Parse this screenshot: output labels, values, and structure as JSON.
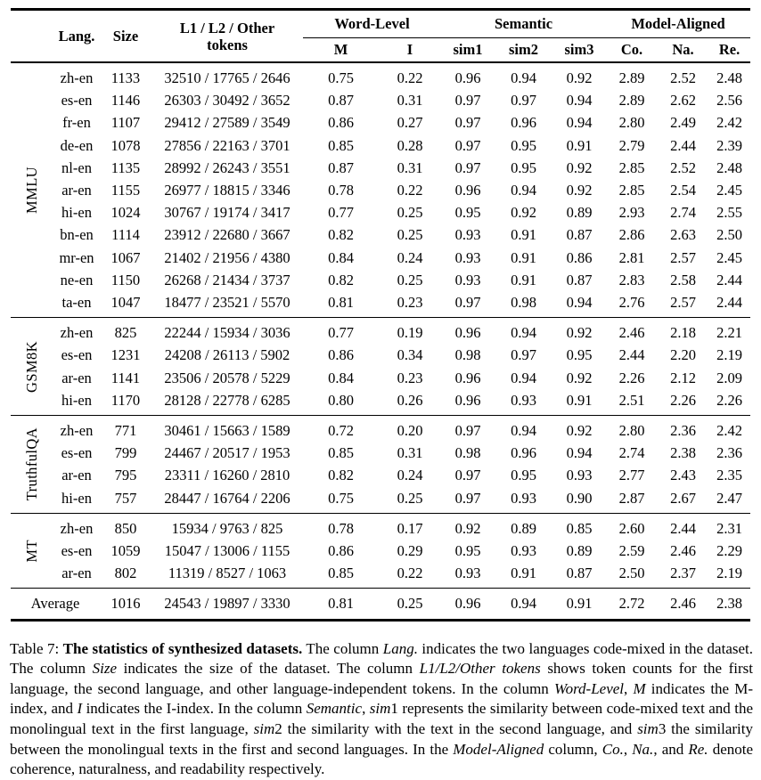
{
  "table": {
    "headers": {
      "lang": "Lang.",
      "size": "Size",
      "tokens_line1": "L1 / L2 / Other",
      "tokens_line2": "tokens",
      "group_word_level": "Word-Level",
      "group_semantic": "Semantic",
      "group_model_aligned": "Model-Aligned",
      "sub": [
        "M",
        "I",
        "sim1",
        "sim2",
        "sim3",
        "Co.",
        "Na.",
        "Re."
      ]
    },
    "sections": [
      {
        "name": "MMLU",
        "rows": [
          [
            "zh-en",
            "1133",
            "32510 / 17765 / 2646",
            "0.75",
            "0.22",
            "0.96",
            "0.94",
            "0.92",
            "2.89",
            "2.52",
            "2.48"
          ],
          [
            "es-en",
            "1146",
            "26303 / 30492 / 3652",
            "0.87",
            "0.31",
            "0.97",
            "0.97",
            "0.94",
            "2.89",
            "2.62",
            "2.56"
          ],
          [
            "fr-en",
            "1107",
            "29412 / 27589 / 3549",
            "0.86",
            "0.27",
            "0.97",
            "0.96",
            "0.94",
            "2.80",
            "2.49",
            "2.42"
          ],
          [
            "de-en",
            "1078",
            "27856 / 22163 / 3701",
            "0.85",
            "0.28",
            "0.97",
            "0.95",
            "0.91",
            "2.79",
            "2.44",
            "2.39"
          ],
          [
            "nl-en",
            "1135",
            "28992 / 26243 / 3551",
            "0.87",
            "0.31",
            "0.97",
            "0.95",
            "0.92",
            "2.85",
            "2.52",
            "2.48"
          ],
          [
            "ar-en",
            "1155",
            "26977 / 18815 / 3346",
            "0.78",
            "0.22",
            "0.96",
            "0.94",
            "0.92",
            "2.85",
            "2.54",
            "2.45"
          ],
          [
            "hi-en",
            "1024",
            "30767 / 19174 / 3417",
            "0.77",
            "0.25",
            "0.95",
            "0.92",
            "0.89",
            "2.93",
            "2.74",
            "2.55"
          ],
          [
            "bn-en",
            "1114",
            "23912 / 22680 / 3667",
            "0.82",
            "0.25",
            "0.93",
            "0.91",
            "0.87",
            "2.86",
            "2.63",
            "2.50"
          ],
          [
            "mr-en",
            "1067",
            "21402 / 21956 / 4380",
            "0.84",
            "0.24",
            "0.93",
            "0.91",
            "0.86",
            "2.81",
            "2.57",
            "2.45"
          ],
          [
            "ne-en",
            "1150",
            "26268 / 21434 / 3737",
            "0.82",
            "0.25",
            "0.93",
            "0.91",
            "0.87",
            "2.83",
            "2.58",
            "2.44"
          ],
          [
            "ta-en",
            "1047",
            "18477 / 23521 / 5570",
            "0.81",
            "0.23",
            "0.97",
            "0.98",
            "0.94",
            "2.76",
            "2.57",
            "2.44"
          ]
        ]
      },
      {
        "name": "GSM8K",
        "rows": [
          [
            "zh-en",
            "825",
            "22244 / 15934 / 3036",
            "0.77",
            "0.19",
            "0.96",
            "0.94",
            "0.92",
            "2.46",
            "2.18",
            "2.21"
          ],
          [
            "es-en",
            "1231",
            "24208 / 26113 / 5902",
            "0.86",
            "0.34",
            "0.98",
            "0.97",
            "0.95",
            "2.44",
            "2.20",
            "2.19"
          ],
          [
            "ar-en",
            "1141",
            "23506 / 20578 / 5229",
            "0.84",
            "0.23",
            "0.96",
            "0.94",
            "0.92",
            "2.26",
            "2.12",
            "2.09"
          ],
          [
            "hi-en",
            "1170",
            "28128 / 22778 / 6285",
            "0.80",
            "0.26",
            "0.96",
            "0.93",
            "0.91",
            "2.51",
            "2.26",
            "2.26"
          ]
        ]
      },
      {
        "name": "TruthfulQA",
        "rows": [
          [
            "zh-en",
            "771",
            "30461 / 15663 / 1589",
            "0.72",
            "0.20",
            "0.97",
            "0.94",
            "0.92",
            "2.80",
            "2.36",
            "2.42"
          ],
          [
            "es-en",
            "799",
            "24467 / 20517 / 1953",
            "0.85",
            "0.31",
            "0.98",
            "0.96",
            "0.94",
            "2.74",
            "2.38",
            "2.36"
          ],
          [
            "ar-en",
            "795",
            "23311 / 16260 / 2810",
            "0.82",
            "0.24",
            "0.97",
            "0.95",
            "0.93",
            "2.77",
            "2.43",
            "2.35"
          ],
          [
            "hi-en",
            "757",
            "28447 / 16764 / 2206",
            "0.75",
            "0.25",
            "0.97",
            "0.93",
            "0.90",
            "2.87",
            "2.67",
            "2.47"
          ]
        ]
      },
      {
        "name": "MT",
        "rows": [
          [
            "zh-en",
            "850",
            "15934 / 9763 / 825",
            "0.78",
            "0.17",
            "0.92",
            "0.89",
            "0.85",
            "2.60",
            "2.44",
            "2.31"
          ],
          [
            "es-en",
            "1059",
            "15047 / 13006 / 1155",
            "0.86",
            "0.29",
            "0.95",
            "0.93",
            "0.89",
            "2.59",
            "2.46",
            "2.29"
          ],
          [
            "ar-en",
            "802",
            "11319 / 8527 / 1063",
            "0.85",
            "0.22",
            "0.93",
            "0.91",
            "0.87",
            "2.50",
            "2.37",
            "2.19"
          ]
        ]
      }
    ],
    "average": {
      "label": "Average",
      "values": [
        "1016",
        "24543 / 19897 / 3330",
        "0.81",
        "0.25",
        "0.96",
        "0.94",
        "0.91",
        "2.72",
        "2.46",
        "2.38"
      ]
    }
  },
  "caption": {
    "segments": [
      {
        "t": "Table 7: ",
        "s": "n"
      },
      {
        "t": "The statistics of synthesized datasets.",
        "s": "b"
      },
      {
        "t": " The column ",
        "s": "n"
      },
      {
        "t": "Lang.",
        "s": "m"
      },
      {
        "t": " indicates the two languages code-mixed in the dataset. The column ",
        "s": "n"
      },
      {
        "t": "Size",
        "s": "m"
      },
      {
        "t": " indicates the size of the dataset. The column ",
        "s": "n"
      },
      {
        "t": "L1/L2/Other tokens",
        "s": "m"
      },
      {
        "t": " shows token counts for the first language, the second language, and other language-independent tokens. In the column ",
        "s": "n"
      },
      {
        "t": "Word-Level",
        "s": "m"
      },
      {
        "t": ", ",
        "s": "n"
      },
      {
        "t": "M",
        "s": "m"
      },
      {
        "t": " indicates the M-index, and ",
        "s": "n"
      },
      {
        "t": "I",
        "s": "m"
      },
      {
        "t": " indicates the I-index. In the column ",
        "s": "n"
      },
      {
        "t": "Semantic",
        "s": "m"
      },
      {
        "t": ", ",
        "s": "n"
      },
      {
        "t": "sim",
        "s": "m"
      },
      {
        "t": "1 represents the similarity between code-mixed text and the monolingual text in the first language, ",
        "s": "n"
      },
      {
        "t": "sim",
        "s": "m"
      },
      {
        "t": "2 the similarity with the text in the second language, and ",
        "s": "n"
      },
      {
        "t": "sim",
        "s": "m"
      },
      {
        "t": "3 the similarity between the monolingual texts in the first and second languages. In the ",
        "s": "n"
      },
      {
        "t": "Model-Aligned",
        "s": "m"
      },
      {
        "t": " column, ",
        "s": "n"
      },
      {
        "t": "Co.",
        "s": "m"
      },
      {
        "t": ", ",
        "s": "n"
      },
      {
        "t": "Na.",
        "s": "m"
      },
      {
        "t": ", and ",
        "s": "n"
      },
      {
        "t": "Re.",
        "s": "m"
      },
      {
        "t": " denote coherence, naturalness, and readability respectively.",
        "s": "n"
      }
    ]
  }
}
